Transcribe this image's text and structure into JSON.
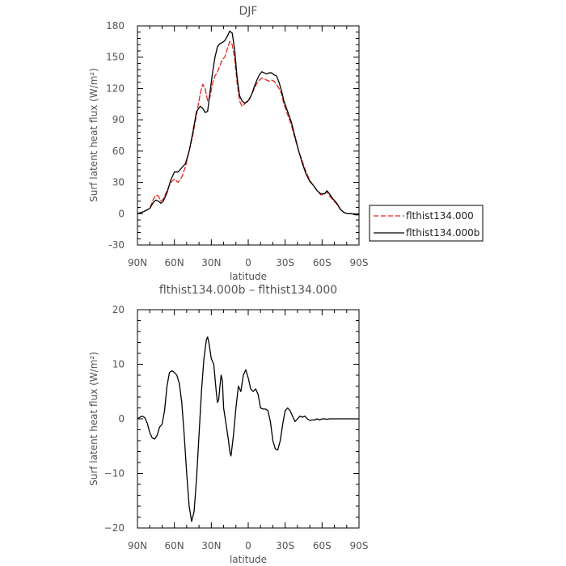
{
  "chart_data": [
    {
      "type": "line",
      "title": "DJF",
      "xlabel": "latitude",
      "ylabel": "Surf latent heat flux (W/m²)",
      "xlim": [
        90,
        -90
      ],
      "ylim": [
        -30,
        180
      ],
      "x_tick_values": [
        90,
        60,
        30,
        0,
        -30,
        -60,
        -90
      ],
      "x_tick_labels": [
        "90N",
        "60N",
        "30N",
        "0",
        "30S",
        "60S",
        "90S"
      ],
      "y_tick_values": [
        -30,
        0,
        30,
        60,
        90,
        120,
        150,
        180
      ],
      "y_tick_labels": [
        "-30",
        "0",
        "30",
        "60",
        "90",
        "120",
        "150",
        "180"
      ],
      "grid": false,
      "legend": {
        "placement": "right"
      },
      "series": [
        {
          "name": "flthist134.000",
          "color": "#e8231f",
          "dash": "dashed",
          "points": [
            [
              90,
              0
            ],
            [
              85,
              2
            ],
            [
              80,
              5
            ],
            [
              77,
              14
            ],
            [
              75,
              18
            ],
            [
              73,
              17
            ],
            [
              71,
              12
            ],
            [
              69,
              14
            ],
            [
              66,
              22
            ],
            [
              63,
              30
            ],
            [
              60,
              33
            ],
            [
              57,
              30
            ],
            [
              54,
              35
            ],
            [
              51,
              45
            ],
            [
              48,
              60
            ],
            [
              45,
              75
            ],
            [
              42,
              95
            ],
            [
              39,
              115
            ],
            [
              37,
              124
            ],
            [
              35,
              120
            ],
            [
              33,
              108
            ],
            [
              31,
              112
            ],
            [
              29,
              125
            ],
            [
              27,
              132
            ],
            [
              25,
              136
            ],
            [
              23,
              142
            ],
            [
              21,
              148
            ],
            [
              19,
              150
            ],
            [
              17,
              158
            ],
            [
              15,
              165
            ],
            [
              13,
              162
            ],
            [
              11,
              148
            ],
            [
              9,
              125
            ],
            [
              7,
              108
            ],
            [
              5,
              103
            ],
            [
              3,
              105
            ],
            [
              1,
              108
            ],
            [
              -1,
              110
            ],
            [
              -3,
              115
            ],
            [
              -5,
              120
            ],
            [
              -7,
              125
            ],
            [
              -9,
              128
            ],
            [
              -11,
              130
            ],
            [
              -13,
              129
            ],
            [
              -15,
              128
            ],
            [
              -17,
              127
            ],
            [
              -19,
              128
            ],
            [
              -21,
              127
            ],
            [
              -23,
              124
            ],
            [
              -25,
              120
            ],
            [
              -27,
              115
            ],
            [
              -29,
              105
            ],
            [
              -32,
              95
            ],
            [
              -35,
              85
            ],
            [
              -38,
              72
            ],
            [
              -41,
              60
            ],
            [
              -44,
              50
            ],
            [
              -47,
              40
            ],
            [
              -50,
              32
            ],
            [
              -53,
              27
            ],
            [
              -56,
              22
            ],
            [
              -59,
              18
            ],
            [
              -62,
              19
            ],
            [
              -64,
              21
            ],
            [
              -66,
              17
            ],
            [
              -69,
              13
            ],
            [
              -72,
              9
            ],
            [
              -75,
              4
            ],
            [
              -78,
              1
            ],
            [
              -81,
              0
            ],
            [
              -84,
              0
            ],
            [
              -87,
              -1
            ],
            [
              -90,
              -1
            ]
          ]
        },
        {
          "name": "flthist134.000b",
          "color": "#000000",
          "dash": "solid",
          "points": [
            [
              90,
              0
            ],
            [
              85,
              2
            ],
            [
              80,
              5
            ],
            [
              77,
              11
            ],
            [
              75,
              13
            ],
            [
              73,
              12
            ],
            [
              71,
              10
            ],
            [
              69,
              12
            ],
            [
              66,
              20
            ],
            [
              63,
              32
            ],
            [
              60,
              40
            ],
            [
              57,
              40
            ],
            [
              54,
              44
            ],
            [
              51,
              48
            ],
            [
              48,
              60
            ],
            [
              45,
              78
            ],
            [
              42,
              98
            ],
            [
              39,
              103
            ],
            [
              37,
              101
            ],
            [
              35,
              97
            ],
            [
              33,
              98
            ],
            [
              31,
              117
            ],
            [
              29,
              135
            ],
            [
              27,
              150
            ],
            [
              25,
              160
            ],
            [
              23,
              163
            ],
            [
              21,
              164
            ],
            [
              19,
              166
            ],
            [
              17,
              170
            ],
            [
              15,
              175
            ],
            [
              13,
              173
            ],
            [
              11,
              157
            ],
            [
              9,
              130
            ],
            [
              7,
              113
            ],
            [
              5,
              108
            ],
            [
              3,
              106
            ],
            [
              1,
              107
            ],
            [
              -1,
              110
            ],
            [
              -3,
              115
            ],
            [
              -5,
              122
            ],
            [
              -7,
              128
            ],
            [
              -9,
              133
            ],
            [
              -11,
              136
            ],
            [
              -13,
              135
            ],
            [
              -15,
              134
            ],
            [
              -17,
              135
            ],
            [
              -19,
              135
            ],
            [
              -21,
              133
            ],
            [
              -23,
              132
            ],
            [
              -25,
              126
            ],
            [
              -27,
              118
            ],
            [
              -29,
              108
            ],
            [
              -32,
              98
            ],
            [
              -35,
              88
            ],
            [
              -38,
              74
            ],
            [
              -41,
              60
            ],
            [
              -44,
              48
            ],
            [
              -47,
              38
            ],
            [
              -50,
              31
            ],
            [
              -53,
              27
            ],
            [
              -56,
              22
            ],
            [
              -59,
              19
            ],
            [
              -62,
              19
            ],
            [
              -64,
              22
            ],
            [
              -66,
              19
            ],
            [
              -69,
              14
            ],
            [
              -72,
              10
            ],
            [
              -75,
              4
            ],
            [
              -78,
              1
            ],
            [
              -81,
              0
            ],
            [
              -84,
              0
            ],
            [
              -87,
              -1
            ],
            [
              -90,
              -1
            ]
          ]
        }
      ]
    },
    {
      "type": "line",
      "title": "flthist134.000b – flthist134.000",
      "xlabel": "latitude",
      "ylabel": "Surf latent heat flux (W/m²)",
      "xlim": [
        90,
        -90
      ],
      "ylim": [
        -20,
        20
      ],
      "x_tick_values": [
        90,
        60,
        30,
        0,
        -30,
        -60,
        -90
      ],
      "x_tick_labels": [
        "90N",
        "60N",
        "30N",
        "0",
        "30S",
        "60S",
        "90S"
      ],
      "y_tick_values": [
        -20,
        -10,
        0,
        10,
        20
      ],
      "y_tick_labels": [
        "−20",
        "−10",
        "0",
        "10",
        "20"
      ],
      "grid": false,
      "series": [
        {
          "color": "#000000",
          "dash": "solid",
          "points": [
            [
              90,
              0
            ],
            [
              88,
              0.3
            ],
            [
              86,
              0.5
            ],
            [
              84,
              0.2
            ],
            [
              82,
              -0.8
            ],
            [
              80,
              -2.5
            ],
            [
              78,
              -3.5
            ],
            [
              76,
              -3.7
            ],
            [
              74,
              -3.0
            ],
            [
              72,
              -1.5
            ],
            [
              70,
              -1.0
            ],
            [
              68,
              1.5
            ],
            [
              66,
              6.0
            ],
            [
              64,
              8.5
            ],
            [
              62,
              8.8
            ],
            [
              60,
              8.5
            ],
            [
              58,
              8.0
            ],
            [
              56,
              6.5
            ],
            [
              54,
              3.0
            ],
            [
              52,
              -3.0
            ],
            [
              50,
              -10.0
            ],
            [
              48,
              -16.0
            ],
            [
              46,
              -18.8
            ],
            [
              44,
              -17.0
            ],
            [
              42,
              -11.0
            ],
            [
              40,
              -3.0
            ],
            [
              38,
              5.0
            ],
            [
              36,
              11.0
            ],
            [
              34,
              14.5
            ],
            [
              33,
              15.0
            ],
            [
              32,
              14.0
            ],
            [
              30,
              11.0
            ],
            [
              28,
              10.0
            ],
            [
              26,
              5.0
            ],
            [
              25,
              3.0
            ],
            [
              24,
              3.5
            ],
            [
              23,
              6.0
            ],
            [
              22,
              8.0
            ],
            [
              21,
              7.0
            ],
            [
              20,
              2.0
            ],
            [
              18,
              -1.0
            ],
            [
              16,
              -4.0
            ],
            [
              15,
              -6.0
            ],
            [
              14,
              -6.8
            ],
            [
              12,
              -3.0
            ],
            [
              10,
              2.0
            ],
            [
              8,
              6.0
            ],
            [
              6,
              5.0
            ],
            [
              4,
              8.0
            ],
            [
              2,
              9.0
            ],
            [
              0,
              7.5
            ],
            [
              -2,
              5.5
            ],
            [
              -4,
              5.0
            ],
            [
              -6,
              5.5
            ],
            [
              -8,
              4.5
            ],
            [
              -10,
              2.0
            ],
            [
              -12,
              1.8
            ],
            [
              -14,
              1.8
            ],
            [
              -16,
              1.5
            ],
            [
              -18,
              -0.5
            ],
            [
              -20,
              -4.0
            ],
            [
              -22,
              -5.5
            ],
            [
              -24,
              -5.7
            ],
            [
              -26,
              -4.0
            ],
            [
              -28,
              -1.0
            ],
            [
              -30,
              1.5
            ],
            [
              -32,
              2.0
            ],
            [
              -34,
              1.5
            ],
            [
              -36,
              0.5
            ],
            [
              -38,
              -0.5
            ],
            [
              -40,
              0.0
            ],
            [
              -42,
              0.5
            ],
            [
              -44,
              0.3
            ],
            [
              -46,
              0.5
            ],
            [
              -48,
              0.0
            ],
            [
              -50,
              -0.3
            ],
            [
              -52,
              -0.2
            ],
            [
              -54,
              -0.2
            ],
            [
              -56,
              0.0
            ],
            [
              -58,
              -0.2
            ],
            [
              -60,
              0.0
            ],
            [
              -62,
              0.0
            ],
            [
              -64,
              -0.1
            ],
            [
              -66,
              0.0
            ],
            [
              -70,
              0.0
            ],
            [
              -75,
              0.0
            ],
            [
              -80,
              0.0
            ],
            [
              -85,
              0.0
            ],
            [
              -90,
              0.0
            ]
          ]
        }
      ]
    }
  ]
}
